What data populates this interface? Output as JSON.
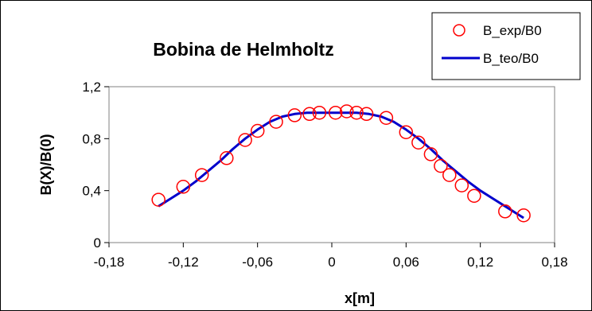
{
  "chart_data": {
    "type": "scatter",
    "title": "Bobina de Helmholtz",
    "xlabel": "x[m]",
    "ylabel": "B(X)/B(0)",
    "xlim": [
      -0.18,
      0.18
    ],
    "ylim": [
      0,
      1.2
    ],
    "x_ticks": [
      -0.18,
      -0.12,
      -0.06,
      0,
      0.06,
      0.12,
      0.18
    ],
    "x_tick_labels": [
      "-0,18",
      "-0,12",
      "-0,06",
      "0",
      "0,06",
      "0,12",
      "0,18"
    ],
    "y_ticks": [
      0,
      0.4,
      0.8,
      1.2
    ],
    "y_tick_labels": [
      "0",
      "0,4",
      "0,8",
      "1,2"
    ],
    "grid": false,
    "legend_position": "top-right",
    "series": [
      {
        "name": "B_exp/B0",
        "kind": "markers",
        "color": "#ff0000",
        "x": [
          -0.14,
          -0.12,
          -0.105,
          -0.085,
          -0.07,
          -0.06,
          -0.045,
          -0.03,
          -0.018,
          -0.01,
          0.003,
          0.012,
          0.02,
          0.028,
          0.044,
          0.06,
          0.07,
          0.08,
          0.088,
          0.095,
          0.105,
          0.115,
          0.14,
          0.155
        ],
        "y": [
          0.33,
          0.43,
          0.52,
          0.65,
          0.79,
          0.86,
          0.93,
          0.98,
          0.99,
          1.0,
          1.0,
          1.01,
          1.0,
          0.99,
          0.96,
          0.85,
          0.77,
          0.68,
          0.59,
          0.52,
          0.44,
          0.36,
          0.24,
          0.21
        ]
      },
      {
        "name": "B_teo/B0",
        "kind": "line",
        "color": "#0000cc",
        "x": [
          -0.14,
          -0.13,
          -0.12,
          -0.11,
          -0.1,
          -0.09,
          -0.08,
          -0.07,
          -0.06,
          -0.05,
          -0.04,
          -0.03,
          -0.02,
          -0.01,
          0.0,
          0.01,
          0.02,
          0.03,
          0.04,
          0.05,
          0.06,
          0.07,
          0.08,
          0.09,
          0.1,
          0.11,
          0.12,
          0.13,
          0.14,
          0.15,
          0.155
        ],
        "y": [
          0.28,
          0.34,
          0.4,
          0.47,
          0.55,
          0.63,
          0.72,
          0.8,
          0.87,
          0.93,
          0.97,
          0.99,
          1.0,
          1.0,
          1.0,
          1.0,
          1.0,
          0.99,
          0.97,
          0.93,
          0.87,
          0.8,
          0.72,
          0.63,
          0.55,
          0.47,
          0.4,
          0.34,
          0.28,
          0.22,
          0.19
        ]
      }
    ]
  }
}
